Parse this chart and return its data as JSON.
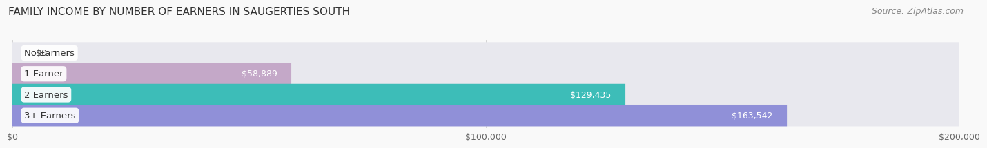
{
  "title": "FAMILY INCOME BY NUMBER OF EARNERS IN SAUGERTIES SOUTH",
  "source": "Source: ZipAtlas.com",
  "categories": [
    "No Earners",
    "1 Earner",
    "2 Earners",
    "3+ Earners"
  ],
  "values": [
    0,
    58889,
    129435,
    163542
  ],
  "value_labels": [
    "$0",
    "$58,889",
    "$129,435",
    "$163,542"
  ],
  "bar_colors": [
    "#a8c4e0",
    "#c4a8c8",
    "#3dbdb8",
    "#9090d8"
  ],
  "bar_bg_color": "#e8e8ee",
  "xlim": [
    0,
    200000
  ],
  "xtick_values": [
    0,
    100000,
    200000
  ],
  "xtick_labels": [
    "$0",
    "$100,000",
    "$200,000"
  ],
  "background_color": "#f9f9f9",
  "title_fontsize": 11,
  "source_fontsize": 9,
  "bar_height": 0.52,
  "label_fontsize": 9.5,
  "value_fontsize": 9
}
